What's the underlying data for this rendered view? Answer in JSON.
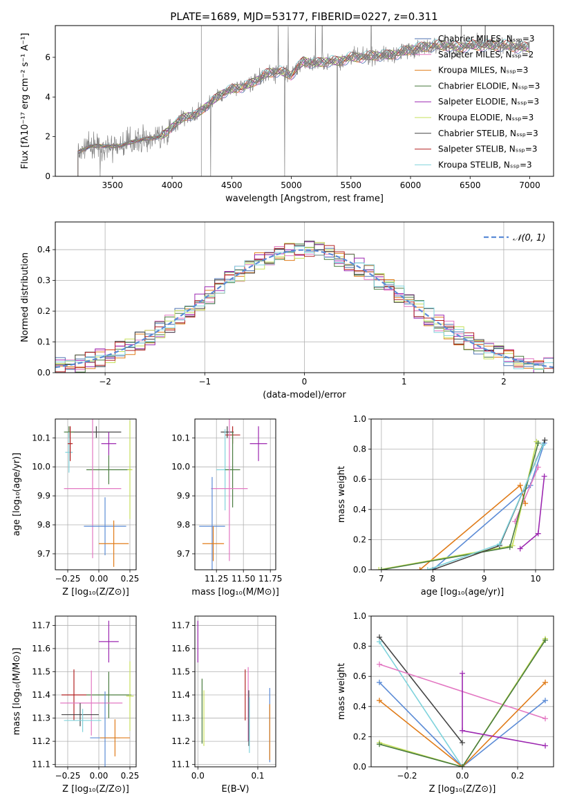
{
  "chart_data": [
    {
      "id": "spectrum",
      "type": "line",
      "title": "PLATE=1689, MJD=53177, FIBERID=0227, z=0.311",
      "xlabel": "wavelength [Angstrom, rest frame]",
      "ylabel": "Flux [fλ10⁻¹⁷ erg cm⁻² s⁻¹ A⁻¹]",
      "xlim": [
        3020,
        7200
      ],
      "ylim": [
        0,
        7.6
      ],
      "xticks": [
        3500,
        4000,
        4500,
        5000,
        5500,
        6000,
        6500,
        7000
      ],
      "yticks": [
        0,
        2,
        4,
        6
      ],
      "grid": false,
      "legend_position": "top-right",
      "legend": [
        {
          "label": "Chabrier MILES, Nₛₛₚ=3",
          "color": "#4c72b0"
        },
        {
          "label": "Salpeter MILES, Nₛₛₚ=2",
          "color": "#e377c2"
        },
        {
          "label": "Kroupa MILES, Nₛₛₚ=3",
          "color": "#e07b18"
        },
        {
          "label": "Chabrier ELODIE, Nₛₛₚ=3",
          "color": "#4a7c3f"
        },
        {
          "label": "Salpeter ELODIE, Nₛₛₚ=3",
          "color": "#9c27b0"
        },
        {
          "label": "Kroupa ELODIE, Nₛₛₚ=3",
          "color": "#c6e05a"
        },
        {
          "label": "Chabrier STELIB, Nₛₛₚ=3",
          "color": "#444444"
        },
        {
          "label": "Salpeter STELIB, Nₛₛₚ=3",
          "color": "#b22222"
        },
        {
          "label": "Kroupa STELIB, Nₛₛₚ=3",
          "color": "#7fd3dc"
        }
      ],
      "data_color": "#808080",
      "flux_anchor_x": [
        3210,
        3300,
        3400,
        3500,
        3600,
        3700,
        3800,
        3900,
        3950,
        4000,
        4100,
        4200,
        4300,
        4400,
        4500,
        4600,
        4700,
        4800,
        4900,
        5000,
        5100,
        5200,
        5300,
        5400,
        5500,
        5600,
        5700,
        5800,
        5900,
        6000,
        6100,
        6200,
        6300,
        6400,
        6500,
        6600,
        6700,
        6800,
        6900,
        7000
      ],
      "flux_anchor_y": [
        1.2,
        1.5,
        1.55,
        1.5,
        1.6,
        1.8,
        1.9,
        2.0,
        2.2,
        2.5,
        3.0,
        3.1,
        3.6,
        4.1,
        4.4,
        4.5,
        4.8,
        5.2,
        5.3,
        5.1,
        5.8,
        5.7,
        5.8,
        5.8,
        6.0,
        6.0,
        6.1,
        6.1,
        6.2,
        6.4,
        6.5,
        6.6,
        6.6,
        6.5,
        6.6,
        6.6,
        6.6,
        6.6,
        6.5,
        6.5
      ]
    },
    {
      "id": "residuals",
      "type": "step",
      "xlabel": "(data-model)/error",
      "ylabel": "Normed distribution",
      "xlim": [
        -2.5,
        2.5
      ],
      "ylim": [
        0,
        0.49
      ],
      "xticks": [
        -2,
        -1,
        0,
        1,
        2
      ],
      "yticks": [
        0.0,
        0.1,
        0.2,
        0.3,
        0.4
      ],
      "grid": true,
      "legend_position": "top-right",
      "gauss_label": "𝒩(0, 1)",
      "gauss_color": "#5b8bd6",
      "bin_width": 0.1,
      "series_colors": [
        "#4c72b0",
        "#e377c2",
        "#e07b18",
        "#4a7c3f",
        "#9c27b0",
        "#c6e05a",
        "#444444",
        "#b22222",
        "#7fd3dc"
      ]
    },
    {
      "id": "age-vs-Z",
      "type": "errorbar",
      "xlabel": "Z [log₁₀(Z/Z⊙)]",
      "ylabel": "age  [log₁₀(age/yr)]",
      "xlim": [
        -0.35,
        0.3
      ],
      "ylim": [
        9.645,
        10.165
      ],
      "xticks": [
        -0.25,
        0.0,
        0.25
      ],
      "yticks": [
        9.7,
        9.8,
        9.9,
        10.0,
        10.1
      ],
      "grid": true,
      "points": [
        {
          "x": -0.02,
          "y": 10.12,
          "xerr": 0.2,
          "yerr": 0.02,
          "color": "#444444"
        },
        {
          "x": -0.24,
          "y": 10.12,
          "xerr": 0.04,
          "yerr": 0.02,
          "color": "#4a7c3f"
        },
        {
          "x": 0.08,
          "y": 10.08,
          "xerr": 0.06,
          "yerr": 0.04,
          "color": "#9c27b0"
        },
        {
          "x": 0.08,
          "y": 9.99,
          "xerr": 0.18,
          "yerr": 0.05,
          "color": "#4a7c3f"
        },
        {
          "x": 0.25,
          "y": 9.99,
          "xerr": 0.02,
          "yerr": 0.17,
          "color": "#c6e05a"
        },
        {
          "x": -0.05,
          "y": 9.925,
          "xerr": 0.23,
          "yerr": 0.24,
          "color": "#e377c2"
        },
        {
          "x": 0.05,
          "y": 9.795,
          "xerr": 0.17,
          "yerr": 0.1,
          "color": "#5b8bd6"
        },
        {
          "x": 0.12,
          "y": 9.735,
          "xerr": 0.12,
          "yerr": 0.08,
          "color": "#e07b18"
        },
        {
          "x": -0.24,
          "y": 10.05,
          "xerr": 0.03,
          "yerr": 0.07,
          "color": "#7fd3dc"
        },
        {
          "x": -0.23,
          "y": 10.08,
          "xerr": 0.02,
          "yerr": 0.06,
          "color": "#b22222"
        }
      ]
    },
    {
      "id": "age-vs-mass",
      "type": "errorbar",
      "xlabel": "mass [log₁₀(M/M⊙)]",
      "xlim": [
        11.05,
        11.8
      ],
      "ylim": [
        9.645,
        10.165
      ],
      "xticks": [
        11.25,
        11.5,
        11.75
      ],
      "yticks": [
        9.7,
        9.8,
        9.9,
        10.0,
        10.1
      ],
      "grid": true,
      "points": [
        {
          "x": 11.35,
          "y": 10.12,
          "xerr": 0.06,
          "yerr": 0.02,
          "color": "#444444"
        },
        {
          "x": 11.4,
          "y": 10.11,
          "xerr": 0.07,
          "yerr": 0.03,
          "color": "#b22222"
        },
        {
          "x": 11.64,
          "y": 10.08,
          "xerr": 0.08,
          "yerr": 0.06,
          "color": "#9c27b0"
        },
        {
          "x": 11.33,
          "y": 9.99,
          "xerr": 0.08,
          "yerr": 0.14,
          "color": "#7fd3dc"
        },
        {
          "x": 11.4,
          "y": 9.99,
          "xerr": 0.07,
          "yerr": 0.13,
          "color": "#4a7c3f"
        },
        {
          "x": 11.37,
          "y": 9.925,
          "xerr": 0.17,
          "yerr": 0.25,
          "color": "#e377c2"
        },
        {
          "x": 11.21,
          "y": 9.795,
          "xerr": 0.12,
          "yerr": 0.17,
          "color": "#5b8bd6"
        },
        {
          "x": 11.22,
          "y": 9.735,
          "xerr": 0.1,
          "yerr": 0.06,
          "color": "#e07b18"
        }
      ]
    },
    {
      "id": "massweight-vs-age",
      "type": "line",
      "xlabel": "age  [log₁₀(age/yr)]",
      "ylabel": "mass weight",
      "xlim": [
        6.8,
        10.35
      ],
      "ylim": [
        0,
        1
      ],
      "xticks": [
        7,
        8,
        9,
        10
      ],
      "yticks": [
        0.0,
        0.2,
        0.4,
        0.6,
        0.8,
        1.0
      ],
      "grid": true,
      "series": [
        {
          "color": "#e07b18",
          "x": [
            7.75,
            9.7,
            9.8
          ],
          "y": [
            0.0,
            0.56,
            0.44
          ]
        },
        {
          "color": "#5b8bd6",
          "x": [
            8.0,
            9.9,
            10.17
          ],
          "y": [
            0.0,
            0.56,
            0.84
          ]
        },
        {
          "color": "#9c27b0",
          "x": [
            9.7,
            10.05,
            10.17
          ],
          "y": [
            0.14,
            0.24,
            0.62
          ]
        },
        {
          "color": "#e377c2",
          "x": [
            9.6,
            10.05
          ],
          "y": [
            0.32,
            0.68
          ]
        },
        {
          "color": "#c6e05a",
          "x": [
            6.95,
            9.55,
            10.02
          ],
          "y": [
            0.0,
            0.16,
            0.85
          ]
        },
        {
          "color": "#4a7c3f",
          "x": [
            7.0,
            9.5,
            10.05
          ],
          "y": [
            0.0,
            0.15,
            0.84
          ]
        },
        {
          "color": "#444444",
          "x": [
            8.0,
            9.3,
            10.18
          ],
          "y": [
            0.0,
            0.16,
            0.86
          ]
        },
        {
          "color": "#7fd3dc",
          "x": [
            7.9,
            9.3,
            10.15
          ],
          "y": [
            0.0,
            0.17,
            0.83
          ]
        }
      ]
    },
    {
      "id": "mass-vs-Z",
      "type": "errorbar",
      "xlabel": "Z [log₁₀(Z/Z⊙)]",
      "ylabel": "mass [log₁₀(M/M⊙)]",
      "xlim": [
        -0.35,
        0.3
      ],
      "ylim": [
        11.09,
        11.74
      ],
      "xticks": [
        -0.25,
        0.0,
        0.25
      ],
      "yticks": [
        11.1,
        11.2,
        11.3,
        11.4,
        11.5,
        11.6,
        11.7
      ],
      "grid": true,
      "points": [
        {
          "x": 0.08,
          "y": 11.63,
          "xerr": 0.08,
          "yerr": 0.09,
          "color": "#9c27b0"
        },
        {
          "x": -0.2,
          "y": 11.4,
          "xerr": 0.1,
          "yerr": 0.11,
          "color": "#b22222"
        },
        {
          "x": 0.08,
          "y": 11.4,
          "xerr": 0.18,
          "yerr": 0.1,
          "color": "#4a7c3f"
        },
        {
          "x": 0.25,
          "y": 11.395,
          "xerr": 0.03,
          "yerr": 0.15,
          "color": "#c6e05a"
        },
        {
          "x": -0.06,
          "y": 11.365,
          "xerr": 0.25,
          "yerr": 0.14,
          "color": "#e377c2"
        },
        {
          "x": -0.15,
          "y": 11.315,
          "xerr": 0.15,
          "yerr": 0.05,
          "color": "#444444"
        },
        {
          "x": -0.13,
          "y": 11.29,
          "xerr": 0.15,
          "yerr": 0.05,
          "color": "#7fd3dc"
        },
        {
          "x": 0.05,
          "y": 11.215,
          "xerr": 0.12,
          "yerr": 0.2,
          "color": "#5b8bd6"
        },
        {
          "x": 0.13,
          "y": 11.215,
          "xerr": 0.12,
          "yerr": 0.08,
          "color": "#e07b18"
        }
      ]
    },
    {
      "id": "mass-vs-ebv",
      "type": "errorbar",
      "xlabel": "E(B-V)",
      "xlim": [
        -0.005,
        0.13
      ],
      "ylim": [
        11.09,
        11.74
      ],
      "xticks": [
        0.0,
        0.1
      ],
      "yticks": [
        11.1,
        11.2,
        11.3,
        11.4,
        11.5,
        11.6,
        11.7
      ],
      "grid": true,
      "points": [
        {
          "x": 0.0,
          "y": 11.63,
          "xerr": 0,
          "yerr": 0.09,
          "color": "#9c27b0"
        },
        {
          "x": 0.079,
          "y": 11.4,
          "xerr": 0,
          "yerr": 0.11,
          "color": "#b22222"
        },
        {
          "x": 0.007,
          "y": 11.33,
          "xerr": 0,
          "yerr": 0.14,
          "color": "#4a7c3f"
        },
        {
          "x": 0.01,
          "y": 11.3,
          "xerr": 0,
          "yerr": 0.12,
          "color": "#c6e05a"
        },
        {
          "x": 0.084,
          "y": 11.36,
          "xerr": 0,
          "yerr": 0.16,
          "color": "#e377c2"
        },
        {
          "x": 0.085,
          "y": 11.3,
          "xerr": 0,
          "yerr": 0.12,
          "color": "#444444"
        },
        {
          "x": 0.086,
          "y": 11.27,
          "xerr": 0,
          "yerr": 0.12,
          "color": "#7fd3dc"
        },
        {
          "x": 0.12,
          "y": 11.27,
          "xerr": 0,
          "yerr": 0.16,
          "color": "#5b8bd6"
        },
        {
          "x": 0.12,
          "y": 11.24,
          "xerr": 0,
          "yerr": 0.12,
          "color": "#e07b18"
        }
      ]
    },
    {
      "id": "massweight-vs-Z",
      "type": "line",
      "xlabel": "Z [log₁₀(Z/Z⊙)]",
      "ylabel": "mass weight",
      "xlim": [
        -0.33,
        0.33
      ],
      "ylim": [
        0,
        1
      ],
      "xticks": [
        -0.2,
        0.0,
        0.2
      ],
      "yticks": [
        0.0,
        0.2,
        0.4,
        0.6,
        0.8,
        1.0
      ],
      "grid": true,
      "series": [
        {
          "color": "#444444",
          "x": [
            -0.3,
            0.0
          ],
          "y": [
            0.86,
            0.16
          ]
        },
        {
          "color": "#7fd3dc",
          "x": [
            -0.3,
            0.0
          ],
          "y": [
            0.83,
            0.0
          ]
        },
        {
          "color": "#e377c2",
          "x": [
            -0.3,
            0.3
          ],
          "y": [
            0.68,
            0.32
          ]
        },
        {
          "color": "#5b8bd6",
          "x": [
            -0.3,
            0.0,
            0.3
          ],
          "y": [
            0.56,
            0.0,
            0.44
          ]
        },
        {
          "color": "#e07b18",
          "x": [
            -0.3,
            0.0,
            0.3
          ],
          "y": [
            0.44,
            0.0,
            0.56
          ]
        },
        {
          "color": "#c6e05a",
          "x": [
            -0.3,
            0.0,
            0.3
          ],
          "y": [
            0.16,
            0.0,
            0.85
          ]
        },
        {
          "color": "#4a7c3f",
          "x": [
            -0.3,
            0.0,
            0.3
          ],
          "y": [
            0.15,
            0.0,
            0.84
          ]
        },
        {
          "color": "#9c27b0",
          "x": [
            0.0,
            0.0,
            0.3
          ],
          "y": [
            0.62,
            0.24,
            0.14
          ]
        }
      ]
    }
  ]
}
